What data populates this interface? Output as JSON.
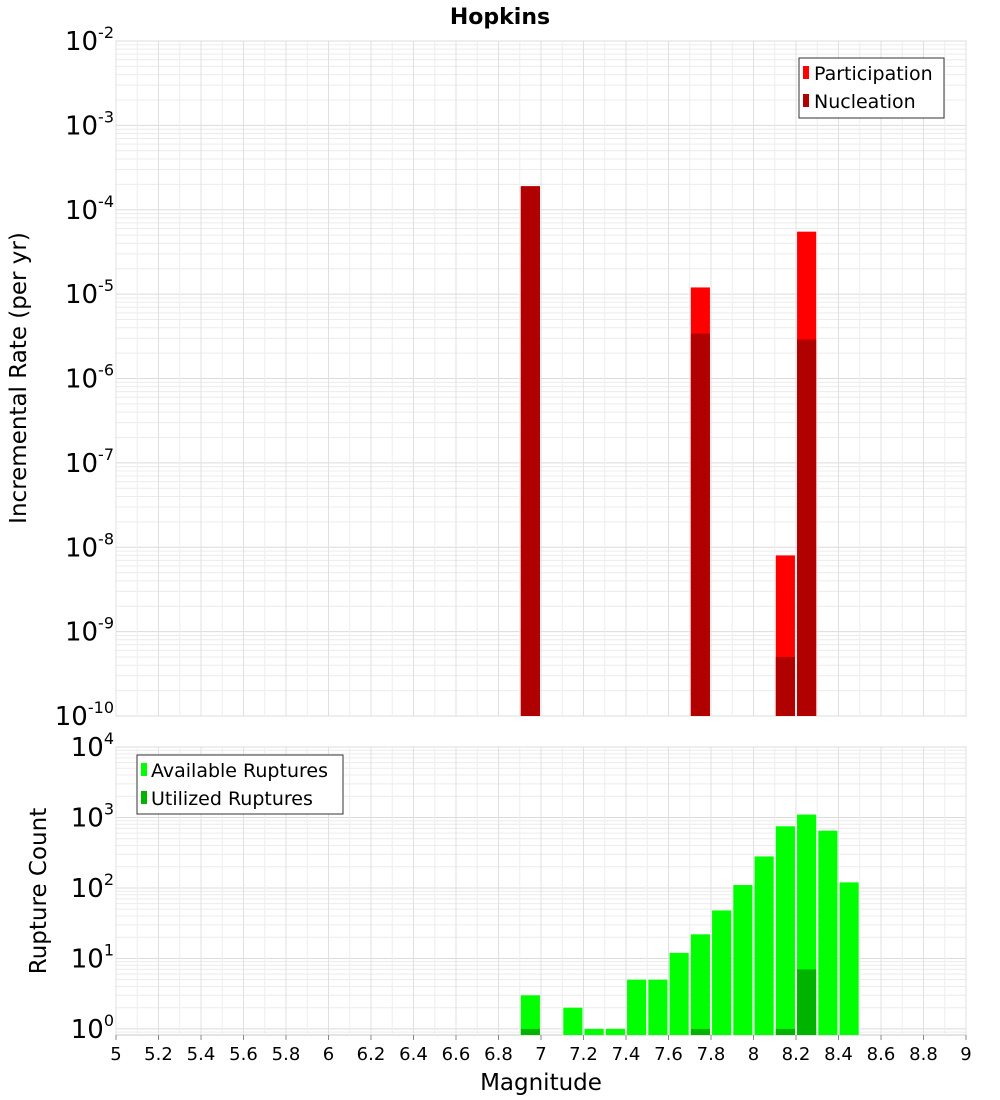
{
  "chart_data": [
    {
      "type": "bar",
      "title": "Hopkins",
      "xlabel": "Magnitude",
      "ylabel": "Incremental Rate (per yr)",
      "yscale": "log",
      "ylim": [
        1e-10,
        0.01
      ],
      "xlim": [
        5,
        9
      ],
      "grid": true,
      "legend_position": "top-right",
      "x_ticks": [
        "5",
        "5.2",
        "5.4",
        "5.6",
        "5.8",
        "6",
        "6.2",
        "6.4",
        "6.6",
        "6.8",
        "7",
        "7.2",
        "7.4",
        "7.6",
        "7.8",
        "8",
        "8.2",
        "8.4",
        "8.6",
        "8.8",
        "9"
      ],
      "y_tick_exponents": [
        "-10",
        "-9",
        "-8",
        "-7",
        "-6",
        "-5",
        "-4",
        "-3",
        "-2"
      ],
      "series": [
        {
          "name": "Participation",
          "color": "#ff0000",
          "points": [
            {
              "x": 6.95,
              "y": 0.00019
            },
            {
              "x": 7.75,
              "y": 1.2e-05
            },
            {
              "x": 8.15,
              "y": 8e-09
            },
            {
              "x": 8.25,
              "y": 5.5e-05
            }
          ]
        },
        {
          "name": "Nucleation",
          "color": "#b00000",
          "points": [
            {
              "x": 6.95,
              "y": 0.00019
            },
            {
              "x": 7.75,
              "y": 3.4e-06
            },
            {
              "x": 8.15,
              "y": 5e-10
            },
            {
              "x": 8.25,
              "y": 2.9e-06
            }
          ]
        }
      ]
    },
    {
      "type": "bar",
      "title": "",
      "xlabel": "Magnitude",
      "ylabel": "Rupture Count",
      "yscale": "log",
      "ylim": [
        0.82,
        10000
      ],
      "xlim": [
        5,
        9
      ],
      "grid": true,
      "legend_position": "top-left",
      "y_tick_exponents": [
        "0",
        "1",
        "2",
        "3",
        "4"
      ],
      "series": [
        {
          "name": "Available Ruptures",
          "color": "#00ff00",
          "points": [
            {
              "x": 6.95,
              "y": 3
            },
            {
              "x": 7.15,
              "y": 2
            },
            {
              "x": 7.25,
              "y": 1
            },
            {
              "x": 7.35,
              "y": 1
            },
            {
              "x": 7.45,
              "y": 5
            },
            {
              "x": 7.55,
              "y": 5
            },
            {
              "x": 7.65,
              "y": 12
            },
            {
              "x": 7.75,
              "y": 22
            },
            {
              "x": 7.85,
              "y": 48
            },
            {
              "x": 7.95,
              "y": 110
            },
            {
              "x": 8.05,
              "y": 280
            },
            {
              "x": 8.15,
              "y": 750
            },
            {
              "x": 8.25,
              "y": 1100
            },
            {
              "x": 8.35,
              "y": 650
            },
            {
              "x": 8.45,
              "y": 120
            }
          ]
        },
        {
          "name": "Utilized Ruptures",
          "color": "#00b300",
          "points": [
            {
              "x": 6.95,
              "y": 1
            },
            {
              "x": 7.75,
              "y": 1
            },
            {
              "x": 8.15,
              "y": 1
            },
            {
              "x": 8.25,
              "y": 7
            }
          ]
        }
      ]
    }
  ]
}
